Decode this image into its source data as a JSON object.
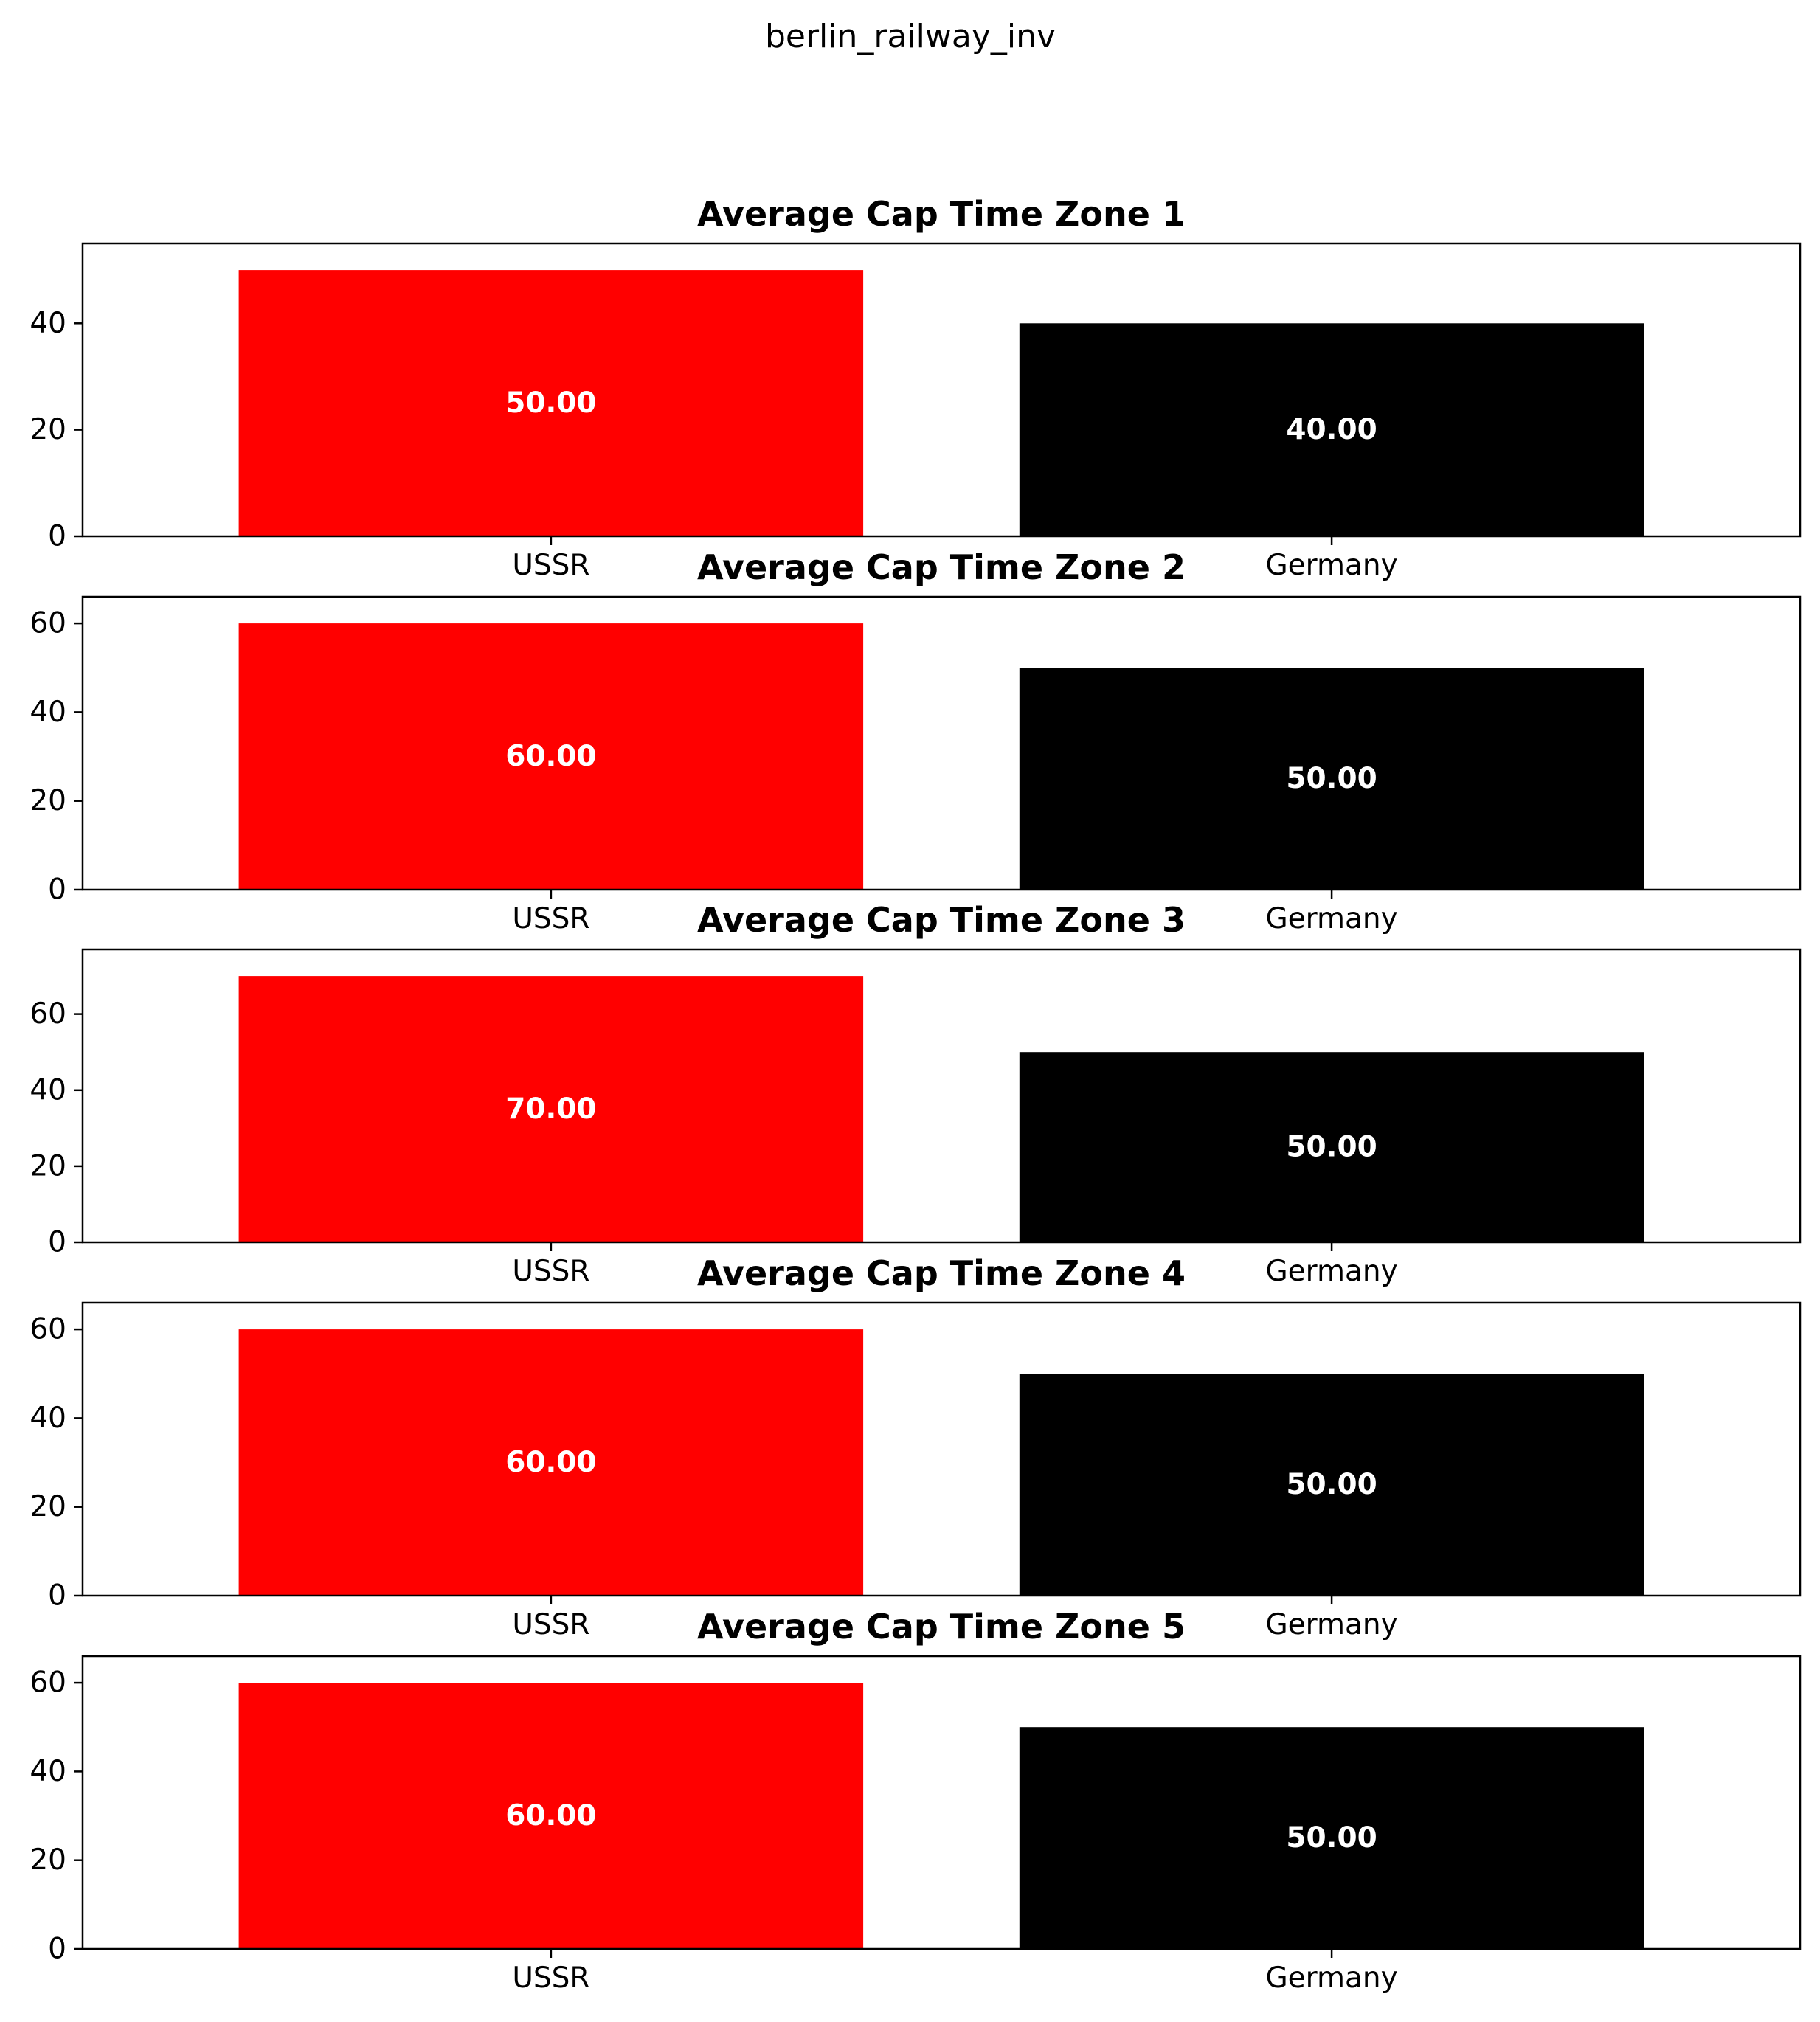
{
  "figure": {
    "suptitle": "berlin_railway_inv"
  },
  "colors": {
    "USSR": "#ff0000",
    "Germany": "#000000",
    "bar_label": "#ffffff"
  },
  "chart_data": [
    {
      "type": "bar",
      "title": "Average Cap Time Zone 1",
      "categories": [
        "USSR",
        "Germany"
      ],
      "values": [
        50,
        40
      ],
      "value_labels": [
        "50.00",
        "40.00"
      ],
      "ylim": [
        0,
        55
      ],
      "yticks": [
        0,
        20,
        40
      ],
      "xlabel": "",
      "ylabel": "",
      "grid": false
    },
    {
      "type": "bar",
      "title": "Average Cap Time Zone 2",
      "categories": [
        "USSR",
        "Germany"
      ],
      "values": [
        60,
        50
      ],
      "value_labels": [
        "60.00",
        "50.00"
      ],
      "ylim": [
        0,
        66
      ],
      "yticks": [
        0,
        20,
        40,
        60
      ],
      "xlabel": "",
      "ylabel": "",
      "grid": false
    },
    {
      "type": "bar",
      "title": "Average Cap Time Zone 3",
      "categories": [
        "USSR",
        "Germany"
      ],
      "values": [
        70,
        50
      ],
      "value_labels": [
        "70.00",
        "50.00"
      ],
      "ylim": [
        0,
        77
      ],
      "yticks": [
        0,
        20,
        40,
        60
      ],
      "xlabel": "",
      "ylabel": "",
      "grid": false
    },
    {
      "type": "bar",
      "title": "Average Cap Time Zone 4",
      "categories": [
        "USSR",
        "Germany"
      ],
      "values": [
        60,
        50
      ],
      "value_labels": [
        "60.00",
        "50.00"
      ],
      "ylim": [
        0,
        66
      ],
      "yticks": [
        0,
        20,
        40,
        60
      ],
      "xlabel": "",
      "ylabel": "",
      "grid": false
    },
    {
      "type": "bar",
      "title": "Average Cap Time Zone 5",
      "categories": [
        "USSR",
        "Germany"
      ],
      "values": [
        60,
        50
      ],
      "value_labels": [
        "60.00",
        "50.00"
      ],
      "ylim": [
        0,
        66
      ],
      "yticks": [
        0,
        20,
        40,
        60
      ],
      "xlabel": "",
      "ylabel": "",
      "grid": false
    }
  ]
}
